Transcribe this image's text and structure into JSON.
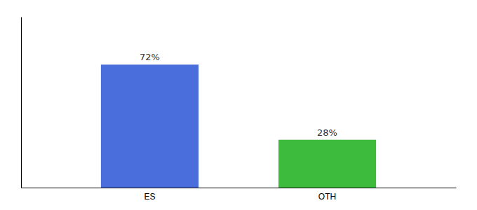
{
  "chart_data": {
    "type": "bar",
    "categories": [
      "ES",
      "OTH"
    ],
    "values": [
      72,
      28
    ],
    "value_labels": [
      "72%",
      "28%"
    ],
    "colors": [
      "#4a6edb",
      "#3dbb3d"
    ],
    "data_labels": true,
    "ylim": [
      0,
      100
    ],
    "tick_labels": "x"
  }
}
